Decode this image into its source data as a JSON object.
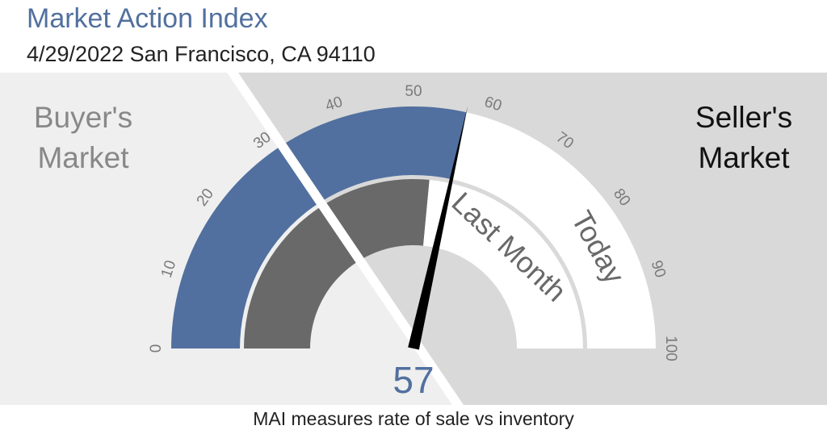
{
  "header": {
    "title": "Market Action Index",
    "subtitle": "4/29/2022 San Francisco, CA 94110"
  },
  "zones": {
    "buyer_line1": "Buyer's",
    "buyer_line2": "Market",
    "seller_line1": "Seller's",
    "seller_line2": "Market"
  },
  "footer": {
    "caption": "MAI measures rate of sale vs inventory"
  },
  "colors": {
    "accent": "#51709f",
    "gray_ring": "#696969",
    "buyer_bg": "#efefef",
    "seller_bg": "#d9d9d9",
    "needle": "#000000"
  },
  "chart_data": {
    "type": "gauge",
    "scale": {
      "min": 0,
      "max": 100,
      "ticks": [
        0,
        10,
        20,
        30,
        40,
        50,
        60,
        70,
        80,
        90,
        100
      ]
    },
    "threshold": 30,
    "series": [
      {
        "name": "Today",
        "value": 57
      },
      {
        "name": "Last Month",
        "value": 53
      }
    ],
    "readout": "57"
  }
}
